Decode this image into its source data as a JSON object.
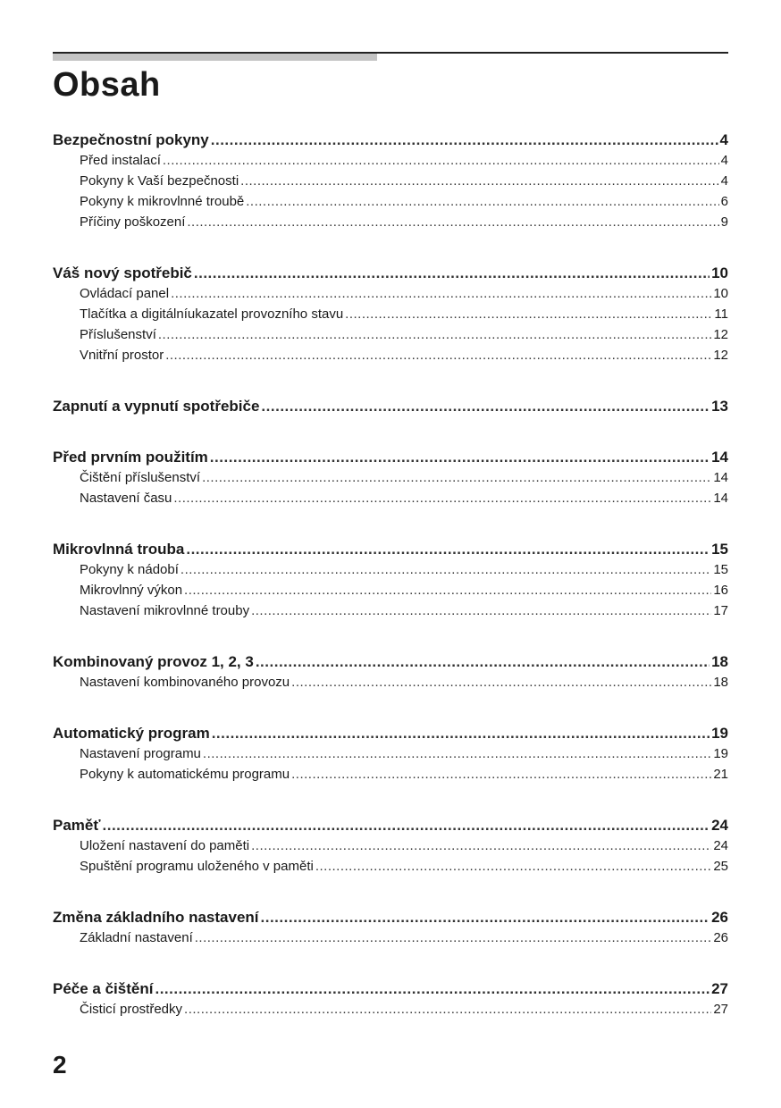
{
  "title": "Obsah",
  "page_number": "2",
  "sections": [
    {
      "label": "Bezpečnostní pokyny",
      "page": "4",
      "items": [
        {
          "label": "Před instalací",
          "page": "4"
        },
        {
          "label": "Pokyny k Vaší bezpečnosti",
          "page": "4"
        },
        {
          "label": "Pokyny k mikrovlnné troubě",
          "page": "6"
        },
        {
          "label": "Příčiny poškození",
          "page": "9"
        }
      ]
    },
    {
      "label": "Váš nový spotřebič",
      "page": "10",
      "items": [
        {
          "label": "Ovládací panel",
          "page": "10"
        },
        {
          "label": "Tlačítka a digitálníukazatel provozního stavu",
          "page": "11"
        },
        {
          "label": "Příslušenství",
          "page": "12"
        },
        {
          "label": "Vnitřní prostor",
          "page": "12"
        }
      ]
    },
    {
      "label": "Zapnutí a vypnutí spotřebiče",
      "page": "13",
      "items": []
    },
    {
      "label": "Před prvním použitím",
      "page": "14",
      "items": [
        {
          "label": "Čištění příslušenství",
          "page": "14"
        },
        {
          "label": "Nastavení času",
          "page": "14"
        }
      ]
    },
    {
      "label": "Mikrovlnná trouba",
      "page": "15",
      "items": [
        {
          "label": "Pokyny k nádobí",
          "page": "15"
        },
        {
          "label": "Mikrovlnný výkon",
          "page": "16"
        },
        {
          "label": "Nastavení mikrovlnné trouby",
          "page": "17"
        }
      ]
    },
    {
      "label": "Kombinovaný provoz 1, 2, 3",
      "page": "18",
      "items": [
        {
          "label": "Nastavení kombinovaného provozu",
          "page": "18"
        }
      ]
    },
    {
      "label": "Automatický program",
      "page": "19",
      "items": [
        {
          "label": "Nastavení programu",
          "page": "19"
        },
        {
          "label": "Pokyny k automatickému programu",
          "page": "21"
        }
      ]
    },
    {
      "label": "Paměť",
      "page": "24",
      "items": [
        {
          "label": "Uložení nastavení do paměti",
          "page": "24"
        },
        {
          "label": "Spuštění programu uloženého v paměti",
          "page": "25"
        }
      ]
    },
    {
      "label": "Změna základního nastavení",
      "page": "26",
      "items": [
        {
          "label": "Základní nastavení",
          "page": "26"
        }
      ]
    },
    {
      "label": "Péče a čištění",
      "page": "27",
      "items": [
        {
          "label": "Čisticí prostředky",
          "page": "27"
        }
      ]
    }
  ]
}
